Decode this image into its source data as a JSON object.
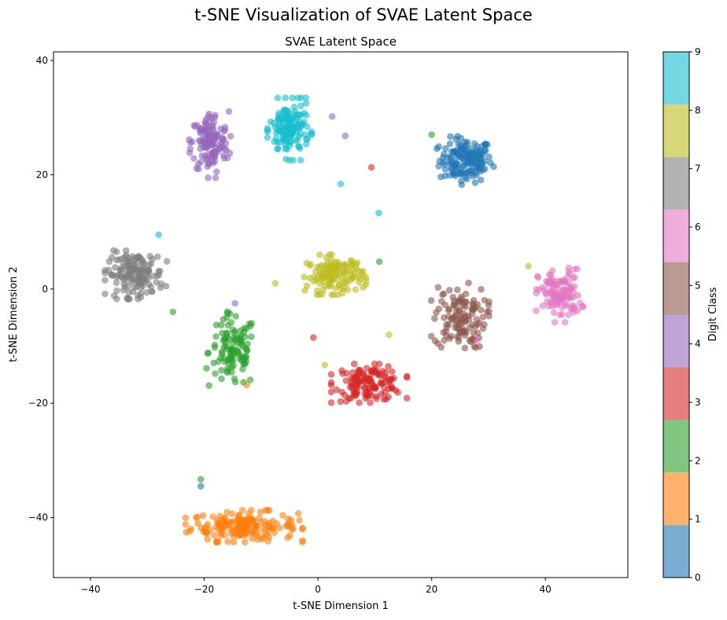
{
  "figure": {
    "suptitle": "t-SNE Visualization of SVAE Latent Space"
  },
  "chart_data": {
    "type": "scatter",
    "title": "SVAE Latent Space",
    "xlabel": "t-SNE Dimension 1",
    "ylabel": "t-SNE Dimension 2",
    "xlim": [
      -46.5,
      54.5
    ],
    "ylim": [
      -50.5,
      41.5
    ],
    "xticks": [
      -40,
      -20,
      0,
      20,
      40
    ],
    "yticks": [
      -40,
      -20,
      0,
      20,
      40
    ],
    "grid": false,
    "colorbar": {
      "label": "Digit Class",
      "ticks": [
        0,
        1,
        2,
        3,
        4,
        5,
        6,
        7,
        8,
        9
      ],
      "colors": [
        "#1f77b4",
        "#ff7f0e",
        "#2ca02c",
        "#d62728",
        "#9467bd",
        "#8c564b",
        "#e377c2",
        "#7f7f7f",
        "#bcbd22",
        "#17becf"
      ],
      "alpha": 0.6
    },
    "clusters": [
      {
        "class": 0,
        "center": [
          26,
          22.5
        ],
        "spread": [
          4.2,
          3.5
        ],
        "count": 150
      },
      {
        "class": 1,
        "center": [
          -13,
          -41.5
        ],
        "spread": [
          8.5,
          2.3
        ],
        "count": 170
      },
      {
        "class": 2,
        "center": [
          -15,
          -11
        ],
        "spread": [
          3.8,
          5.8
        ],
        "count": 110
      },
      {
        "class": 3,
        "center": [
          9,
          -16.5
        ],
        "spread": [
          5.5,
          2.8
        ],
        "count": 130
      },
      {
        "class": 4,
        "center": [
          -19,
          25.5
        ],
        "spread": [
          3.0,
          5.0
        ],
        "count": 135
      },
      {
        "class": 5,
        "center": [
          25,
          -5
        ],
        "spread": [
          4.2,
          5.0
        ],
        "count": 120
      },
      {
        "class": 6,
        "center": [
          42.5,
          -1
        ],
        "spread": [
          3.4,
          4.0
        ],
        "count": 115
      },
      {
        "class": 7,
        "center": [
          -32,
          2.5
        ],
        "spread": [
          4.5,
          3.5
        ],
        "count": 150
      },
      {
        "class": 8,
        "center": [
          3,
          2.5
        ],
        "spread": [
          4.5,
          2.9
        ],
        "count": 135
      },
      {
        "class": 9,
        "center": [
          -5,
          28
        ],
        "spread": [
          3.2,
          4.5
        ],
        "count": 145
      }
    ],
    "outliers": [
      {
        "class": 0,
        "x": -20.6,
        "y": -34.5
      },
      {
        "class": 2,
        "x": -20.6,
        "y": -33.3
      },
      {
        "class": 2,
        "x": 20,
        "y": 27
      },
      {
        "class": 2,
        "x": -25.5,
        "y": -4
      },
      {
        "class": 2,
        "x": 10.8,
        "y": 4.8
      },
      {
        "class": 3,
        "x": 9.4,
        "y": 21.3
      },
      {
        "class": 3,
        "x": -0.8,
        "y": -8.5
      },
      {
        "class": 4,
        "x": 2.5,
        "y": 30.2
      },
      {
        "class": 4,
        "x": 4.8,
        "y": 26.8
      },
      {
        "class": 4,
        "x": -14.6,
        "y": -2.5
      },
      {
        "class": 6,
        "x": 28,
        "y": -9
      },
      {
        "class": 8,
        "x": 37,
        "y": 4
      },
      {
        "class": 8,
        "x": 12.5,
        "y": -8
      },
      {
        "class": 8,
        "x": 1.2,
        "y": -13.3
      },
      {
        "class": 8,
        "x": -7.5,
        "y": 1
      },
      {
        "class": 9,
        "x": -28,
        "y": 9.5
      },
      {
        "class": 9,
        "x": 10.7,
        "y": 13.3
      },
      {
        "class": 9,
        "x": 4,
        "y": 18.4
      },
      {
        "class": 1,
        "x": -12.5,
        "y": -16.8
      }
    ]
  }
}
